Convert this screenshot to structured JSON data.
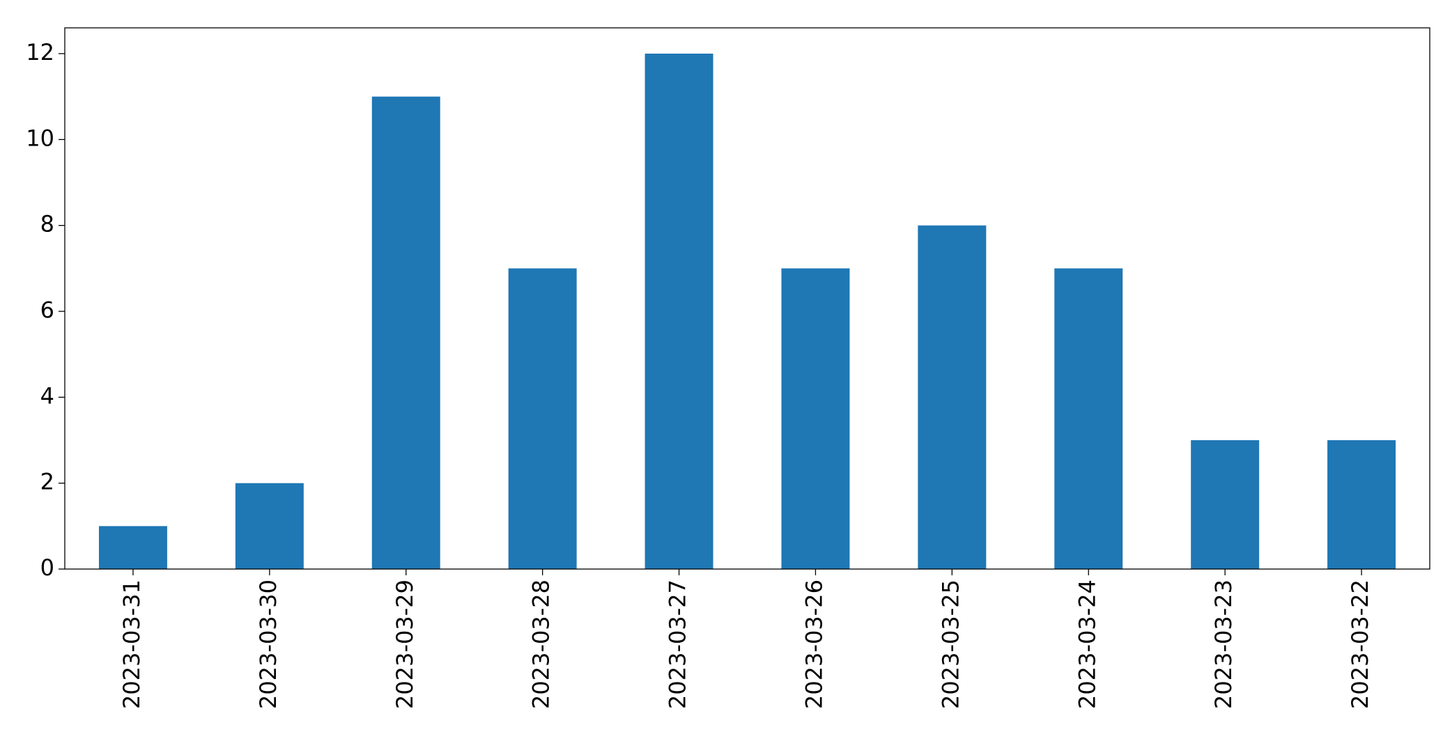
{
  "chart_data": {
    "type": "bar",
    "categories": [
      "2023-03-31",
      "2023-03-30",
      "2023-03-29",
      "2023-03-28",
      "2023-03-27",
      "2023-03-26",
      "2023-03-25",
      "2023-03-24",
      "2023-03-23",
      "2023-03-22"
    ],
    "values": [
      1,
      2,
      11,
      7,
      12,
      7,
      8,
      7,
      3,
      3
    ],
    "color": "#1f77b4",
    "ylim": [
      0,
      12.6
    ],
    "yticks": [
      0,
      2,
      4,
      6,
      8,
      10,
      12
    ],
    "grid": false
  }
}
